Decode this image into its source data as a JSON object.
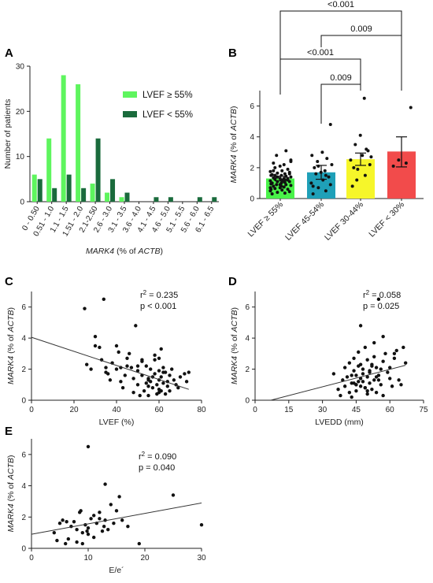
{
  "panel_letters": {
    "a": "A",
    "b": "B",
    "c": "C",
    "d": "D",
    "e": "E"
  },
  "colors": {
    "light_green": "#5ef55e",
    "dark_green": "#1a6b3c",
    "bar_green": "#49f249",
    "bar_teal": "#1fa0b8",
    "bar_yellow": "#f6f62a",
    "bar_red": "#f24b4b",
    "dot": "#111111"
  },
  "chart_data": [
    {
      "id": "A",
      "type": "bar",
      "ylabel": "Number of patients",
      "xlabel_italic": "MARK4",
      "xlabel_rest": " (% of ",
      "xlabel_italic2": "ACTB",
      "xlabel_end": ")",
      "ylim": [
        0,
        30
      ],
      "yticks": [
        0,
        10,
        20,
        30
      ],
      "categories": [
        "0 - 0.50",
        "0.51 - 1.0",
        "1.1 - 1.5",
        "1.51 - 2.0",
        "2.1-2.50",
        "2.6 - 3.0",
        "3.1 - 3.5",
        "3.6 - 4.0",
        "4.1 - 4.5",
        "4.6 - 5.0",
        "5.1 - 5.5",
        "5.6 - 6.0",
        "6.1 - 6.5"
      ],
      "series": [
        {
          "name": "LVEF ≥ 55%",
          "color": "#5ef55e",
          "values": [
            6,
            14,
            28,
            26,
            4,
            2,
            1,
            0,
            0,
            0,
            0,
            0,
            0
          ]
        },
        {
          "name": "LVEF < 55%",
          "color": "#1a6b3c",
          "values": [
            5,
            3,
            6,
            3,
            14,
            5,
            2,
            0,
            1,
            1,
            0,
            1,
            1
          ]
        }
      ],
      "legend_position": "right"
    },
    {
      "id": "B",
      "type": "bar",
      "ylabel_italic": "MARK4",
      "ylabel_rest": " (% of ",
      "ylabel_italic2": "ACTB",
      "ylabel_end": ")",
      "ylim": [
        0,
        7
      ],
      "yticks": [
        0,
        2,
        4,
        6
      ],
      "categories": [
        "LVEF ≥ 55%",
        "LVEF 45-54%",
        "LVEF 30-44%",
        "LVEF < 30%"
      ],
      "means": [
        1.3,
        1.7,
        2.55,
        3.05
      ],
      "errors": [
        [
          1.15,
          1.45
        ],
        [
          1.25,
          2.15
        ],
        [
          2.15,
          2.95
        ],
        [
          2.05,
          4.0
        ]
      ],
      "points": [
        [
          0.3,
          0.35,
          0.4,
          0.45,
          0.5,
          0.55,
          0.6,
          0.65,
          0.7,
          0.75,
          0.8,
          0.85,
          0.9,
          0.9,
          0.95,
          1.0,
          1.0,
          1.05,
          1.1,
          1.1,
          1.15,
          1.2,
          1.2,
          1.25,
          1.3,
          1.3,
          1.35,
          1.4,
          1.4,
          1.45,
          1.5,
          1.5,
          1.55,
          1.6,
          1.65,
          1.7,
          1.75,
          1.8,
          1.9,
          2.0,
          2.1,
          2.2,
          2.3,
          2.5,
          2.8,
          3.1,
          0.6,
          0.8,
          1.0,
          1.2,
          1.4,
          1.6,
          0.7,
          1.1,
          1.3,
          1.5,
          0.9,
          1.2,
          1.8,
          2.4
        ],
        [
          0.3,
          0.5,
          0.7,
          0.9,
          1.0,
          1.2,
          1.4,
          1.6,
          1.7,
          1.8,
          2.0,
          2.2,
          2.4,
          2.6,
          2.8,
          3.0,
          0.8,
          1.5,
          2.1,
          4.8
        ],
        [
          0.8,
          1.5,
          1.9,
          2.2,
          2.5,
          2.8,
          3.1,
          3.5,
          4.1,
          6.5,
          2.0,
          2.7,
          1.2,
          3.2
        ],
        [
          2.1,
          2.3,
          2.5,
          5.9
        ]
      ],
      "colors": [
        "#49f249",
        "#1fa0b8",
        "#f6f62a",
        "#f24b4b"
      ],
      "brackets": [
        {
          "from": 0,
          "to": 3,
          "label": "<0.001"
        },
        {
          "from": 1,
          "to": 3,
          "label": "0.009"
        },
        {
          "from": 0,
          "to": 2,
          "label": "<0.001"
        },
        {
          "from": 1,
          "to": 2,
          "label": "0.009"
        }
      ]
    },
    {
      "id": "C",
      "type": "scatter",
      "xlabel": "LVEF (%)",
      "ylabel_italic": "MARK4",
      "ylabel_rest": " (% of ",
      "ylabel_italic2": "ACTB",
      "ylabel_end": ")",
      "xlim": [
        0,
        80
      ],
      "ylim": [
        0,
        7
      ],
      "xticks": [
        0,
        20,
        40,
        60,
        80
      ],
      "yticks": [
        0,
        2,
        4,
        6
      ],
      "r2_prefix": "r",
      "r2_sup": "2",
      "r2_value": " = 0.235",
      "p_text": "p < 0.001",
      "fit": [
        [
          0,
          4.05
        ],
        [
          74,
          0.7
        ]
      ],
      "x": [
        25,
        26,
        28,
        30,
        32,
        33,
        34,
        35,
        36,
        37,
        38,
        40,
        41,
        42,
        43,
        44,
        45,
        46,
        47,
        48,
        49,
        50,
        50,
        51,
        52,
        52,
        53,
        54,
        54,
        55,
        55,
        56,
        56,
        57,
        57,
        58,
        58,
        59,
        59,
        60,
        60,
        60,
        61,
        61,
        61,
        62,
        62,
        63,
        63,
        64,
        64,
        65,
        66,
        67,
        68,
        69,
        70,
        72,
        73,
        74,
        45,
        48,
        52,
        55,
        58,
        60,
        62,
        35,
        40,
        50,
        55,
        60,
        65,
        30,
        42
      ],
      "y": [
        5.9,
        2.3,
        2.0,
        4.1,
        3.4,
        2.6,
        6.5,
        2.1,
        1.7,
        1.3,
        2.4,
        2.0,
        3.1,
        1.2,
        0.8,
        1.6,
        2.7,
        3.0,
        2.1,
        0.5,
        4.8,
        1.9,
        1.0,
        0.3,
        1.6,
        2.6,
        0.6,
        2.2,
        1.1,
        1.4,
        0.3,
        2.0,
        1.2,
        1.5,
        0.8,
        2.6,
        1.7,
        1.0,
        0.4,
        2.7,
        1.9,
        1.3,
        3.3,
        1.5,
        0.6,
        2.1,
        1.1,
        1.8,
        0.4,
        1.2,
        0.9,
        1.6,
        2.0,
        1.3,
        1.0,
        0.8,
        1.5,
        1.7,
        1.2,
        1.8,
        2.2,
        1.4,
        2.5,
        0.9,
        2.9,
        0.5,
        1.8,
        1.8,
        3.5,
        2.2,
        1.3,
        0.7,
        0.6,
        3.5,
        2.1
      ]
    },
    {
      "id": "D",
      "type": "scatter",
      "xlabel": "LVEDD (mm)",
      "ylabel_italic": "MARK4",
      "ylabel_rest": " (% of ",
      "ylabel_italic2": "ACTB",
      "ylabel_end": ")",
      "xlim": [
        0,
        75
      ],
      "ylim": [
        0,
        7
      ],
      "xticks": [
        0,
        15,
        30,
        45,
        60,
        75
      ],
      "yticks": [
        0,
        2,
        4,
        6
      ],
      "r2_prefix": "r",
      "r2_sup": "2",
      "r2_value": " = 0.058",
      "p_text": "p = 0.025",
      "fit": [
        [
          7,
          0.0
        ],
        [
          67,
          2.25
        ]
      ],
      "x": [
        35,
        37,
        38,
        39,
        40,
        40,
        41,
        42,
        42,
        43,
        43,
        44,
        44,
        45,
        45,
        45,
        46,
        46,
        47,
        47,
        47,
        48,
        48,
        49,
        49,
        50,
        50,
        50,
        51,
        51,
        52,
        52,
        53,
        53,
        54,
        54,
        55,
        55,
        56,
        56,
        57,
        57,
        58,
        59,
        60,
        61,
        62,
        63,
        64,
        65,
        66,
        67,
        46,
        48,
        50,
        52,
        54,
        44,
        47,
        49,
        51,
        53,
        55,
        57,
        43,
        45,
        60,
        62
      ],
      "y": [
        1.7,
        0.7,
        0.3,
        1.3,
        0.9,
        2.1,
        1.5,
        0.5,
        2.4,
        1.1,
        0.2,
        1.9,
        2.7,
        1.0,
        1.6,
        0.6,
        2.2,
        3.1,
        0.9,
        1.4,
        4.8,
        1.2,
        2.0,
        0.8,
        3.4,
        1.5,
        0.4,
        2.6,
        1.8,
        1.1,
        2.3,
        0.7,
        1.3,
        3.7,
        2.1,
        0.5,
        6.5,
        1.6,
        2.0,
        1.0,
        2.5,
        0.3,
        3.0,
        1.8,
        1.4,
        0.9,
        2.7,
        3.2,
        1.3,
        1.0,
        3.4,
        2.4,
        1.2,
        1.7,
        0.6,
        2.2,
        1.5,
        1.1,
        2.3,
        0.8,
        1.9,
        2.8,
        1.3,
        4.1,
        1.6,
        1.0,
        2.1,
        3.0
      ]
    },
    {
      "id": "E",
      "type": "scatter",
      "xlabel": "E/e´",
      "ylabel_italic": "MARK4",
      "ylabel_rest": " (% of ",
      "ylabel_italic2": "ACTB",
      "ylabel_end": ")",
      "xlim": [
        0,
        30
      ],
      "ylim": [
        0,
        7
      ],
      "xticks": [
        0,
        10,
        20,
        30
      ],
      "yticks": [
        0,
        2,
        4,
        6
      ],
      "r2_prefix": "r",
      "r2_sup": "2",
      "r2_value": " = 0.090",
      "p_text": "p = 0.040",
      "fit": [
        [
          0,
          0.9
        ],
        [
          30,
          2.9
        ]
      ],
      "x": [
        4,
        4.5,
        5,
        5.5,
        6,
        6.5,
        7,
        7.5,
        8,
        8,
        8.5,
        9,
        9,
        9.5,
        10,
        10,
        10.5,
        11,
        11,
        11.5,
        12,
        12,
        12.5,
        13,
        13,
        13.5,
        14,
        14.5,
        15,
        15.5,
        16,
        17,
        19,
        25,
        30,
        10,
        8.7,
        6.2,
        9.8,
        12.8
      ],
      "y": [
        1.0,
        0.5,
        1.6,
        1.8,
        0.3,
        0.6,
        1.4,
        1.7,
        1.2,
        0.4,
        2.3,
        0.3,
        1.0,
        1.5,
        6.5,
        1.3,
        1.9,
        2.1,
        0.7,
        1.6,
        1.9,
        2.3,
        1.1,
        1.8,
        4.1,
        1.2,
        2.8,
        1.6,
        2.4,
        3.3,
        1.8,
        1.4,
        0.3,
        3.4,
        1.5,
        0.9,
        2.4,
        1.7,
        1.1,
        1.4
      ]
    }
  ]
}
